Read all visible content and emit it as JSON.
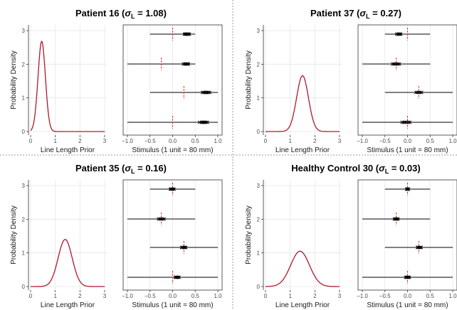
{
  "colors": {
    "density": "#b2182b",
    "dashed": "#d7301f",
    "line": "#000000",
    "grid": "#e6e6e6",
    "divider": "#9a9a9a"
  },
  "chart_data": [
    {
      "type": "line",
      "panel": "density",
      "title": "Patient 16 (σL = 1.08)",
      "title_parts": {
        "prefix": "Patient 16 (",
        "sigma": "σ",
        "sub": "L",
        "suffix": " = 1.08)"
      },
      "xlabel": "Line Length Prior",
      "ylabel": "Probability Density",
      "xlim": [
        0,
        3
      ],
      "ylim": [
        0,
        3
      ],
      "xticks": [
        0,
        1,
        2,
        3
      ],
      "yticks": [
        0,
        1,
        2,
        3
      ],
      "mode": 0.45,
      "sd": 0.15,
      "peak": 2.68,
      "grid": true,
      "series": [
        {
          "type": "normal-density",
          "mean": 0.45,
          "sd": 0.15
        }
      ],
      "stimulus": {
        "xlabel": "Stimulus (1 unit = 80 mm)",
        "xlim": [
          -1.0,
          1.0
        ],
        "xticks": [
          "−1.0",
          "−0.5",
          "0.0",
          "0.5",
          "1.0"
        ],
        "xtick_values": [
          -1.0,
          -0.5,
          0.0,
          0.5,
          1.0
        ],
        "rows": [
          {
            "left": -0.5,
            "right": 0.5,
            "mid": 0.0,
            "estimates": [
              0.26,
              0.28,
              0.3,
              0.31,
              0.33,
              0.35,
              0.37
            ]
          },
          {
            "left": -1.0,
            "right": 0.5,
            "mid": -0.25,
            "estimates": [
              0.24,
              0.27,
              0.29,
              0.31,
              0.33,
              0.35
            ]
          },
          {
            "left": -0.5,
            "right": 1.0,
            "mid": 0.25,
            "estimates": [
              0.66,
              0.69,
              0.72,
              0.74,
              0.76,
              0.79,
              0.82
            ]
          },
          {
            "left": -1.0,
            "right": 1.0,
            "mid": 0.0,
            "estimates": [
              0.6,
              0.64,
              0.67,
              0.69,
              0.71,
              0.74,
              0.77
            ]
          }
        ]
      }
    },
    {
      "type": "line",
      "panel": "density",
      "title": "Patient 37 (σL = 0.27)",
      "title_parts": {
        "prefix": "Patient 37 (",
        "sigma": "σ",
        "sub": "L",
        "suffix": " = 0.27)"
      },
      "xlabel": "Line Length Prior",
      "ylabel": "Probability Density",
      "xlim": [
        0,
        3
      ],
      "ylim": [
        0,
        3
      ],
      "xticks": [
        0,
        1,
        2,
        3
      ],
      "yticks": [
        0,
        1,
        2,
        3
      ],
      "mode": 1.5,
      "sd": 0.24,
      "peak": 1.66,
      "grid": true,
      "series": [
        {
          "type": "normal-density",
          "mean": 1.5,
          "sd": 0.24
        }
      ],
      "stimulus": {
        "xlabel": "Stimulus (1 unit = 80 mm)",
        "xlim": [
          -1.0,
          1.0
        ],
        "xticks": [
          "−1.0",
          "−0.5",
          "0.0",
          "0.5",
          "1.0"
        ],
        "xtick_values": [
          -1.0,
          -0.5,
          0.0,
          0.5,
          1.0
        ],
        "rows": [
          {
            "left": -0.5,
            "right": 0.5,
            "mid": 0.0,
            "estimates": [
              -0.24,
              -0.21,
              -0.19,
              -0.17,
              -0.15
            ]
          },
          {
            "left": -1.0,
            "right": 0.5,
            "mid": -0.25,
            "estimates": [
              -0.33,
              -0.3,
              -0.27,
              -0.24,
              -0.21,
              -0.18
            ]
          },
          {
            "left": -0.5,
            "right": 1.0,
            "mid": 0.25,
            "estimates": [
              0.19,
              0.22,
              0.25,
              0.28,
              0.31
            ]
          },
          {
            "left": -1.0,
            "right": 1.0,
            "mid": 0.0,
            "estimates": [
              -0.12,
              -0.08,
              -0.05,
              -0.02,
              0.02,
              0.05
            ]
          }
        ]
      }
    },
    {
      "type": "line",
      "panel": "density",
      "title": "Patient 35 (σL = 0.16)",
      "title_parts": {
        "prefix": "Patient 35 (",
        "sigma": "σ",
        "sub": "L",
        "suffix": " = 0.16)"
      },
      "xlabel": "Line Length Prior",
      "ylabel": "Probability Density",
      "xlim": [
        0,
        3
      ],
      "ylim": [
        0,
        3
      ],
      "xticks": [
        0,
        1,
        2,
        3
      ],
      "yticks": [
        0,
        1,
        2,
        3
      ],
      "mode": 1.4,
      "sd": 0.285,
      "peak": 1.4,
      "grid": true,
      "series": [
        {
          "type": "normal-density",
          "mean": 1.4,
          "sd": 0.285
        }
      ],
      "stimulus": {
        "xlabel": "Stimulus (1 unit = 80 mm)",
        "xlim": [
          -1.0,
          1.0
        ],
        "xticks": [
          "−1.0",
          "−0.5",
          "0.0",
          "0.5",
          "1.0"
        ],
        "xtick_values": [
          -1.0,
          -0.5,
          0.0,
          0.5,
          1.0
        ],
        "rows": [
          {
            "left": -0.5,
            "right": 0.5,
            "mid": 0.0,
            "estimates": [
              -0.05,
              -0.03,
              -0.01,
              0.01,
              0.03
            ]
          },
          {
            "left": -1.0,
            "right": 0.5,
            "mid": -0.25,
            "estimates": [
              -0.31,
              -0.28,
              -0.25,
              -0.22,
              -0.19
            ]
          },
          {
            "left": -0.5,
            "right": 1.0,
            "mid": 0.25,
            "estimates": [
              0.2,
              0.22,
              0.25,
              0.27,
              0.29
            ]
          },
          {
            "left": -1.0,
            "right": 1.0,
            "mid": 0.0,
            "estimates": [
              0.06,
              0.08,
              0.1,
              0.12,
              0.14
            ]
          }
        ]
      }
    },
    {
      "type": "line",
      "panel": "density",
      "title": "Healthy Control 30 (σL = 0.03)",
      "title_parts": {
        "prefix": "Healthy Control 30 (",
        "sigma": "σ",
        "sub": "L",
        "suffix": " = 0.03)"
      },
      "xlabel": "Line Length Prior",
      "ylabel": "Probability Density",
      "xlim": [
        0,
        3
      ],
      "ylim": [
        0,
        3
      ],
      "xticks": [
        0,
        1,
        2,
        3
      ],
      "yticks": [
        0,
        1,
        2,
        3
      ],
      "mode": 1.4,
      "sd": 0.38,
      "peak": 1.05,
      "grid": true,
      "series": [
        {
          "type": "normal-density",
          "mean": 1.4,
          "sd": 0.38
        }
      ],
      "stimulus": {
        "xlabel": "Stimulus (1 unit = 80 mm)",
        "xlim": [
          -1.0,
          1.0
        ],
        "xticks": [
          "−1.0",
          "−0.5",
          "0.0",
          "0.5",
          "1.0"
        ],
        "xtick_values": [
          -1.0,
          -0.5,
          0.0,
          0.5,
          1.0
        ],
        "rows": [
          {
            "left": -0.5,
            "right": 0.5,
            "mid": 0.0,
            "estimates": [
              -0.02,
              -0.01,
              0.0,
              0.01,
              0.02
            ]
          },
          {
            "left": -1.0,
            "right": 0.5,
            "mid": -0.25,
            "estimates": [
              -0.29,
              -0.27,
              -0.25,
              -0.23,
              -0.21
            ]
          },
          {
            "left": -0.5,
            "right": 1.0,
            "mid": 0.25,
            "estimates": [
              0.22,
              0.24,
              0.26,
              0.28,
              0.3
            ]
          },
          {
            "left": -1.0,
            "right": 1.0,
            "mid": 0.0,
            "estimates": [
              -0.04,
              -0.02,
              0.0,
              0.02,
              0.04
            ]
          }
        ]
      }
    }
  ]
}
